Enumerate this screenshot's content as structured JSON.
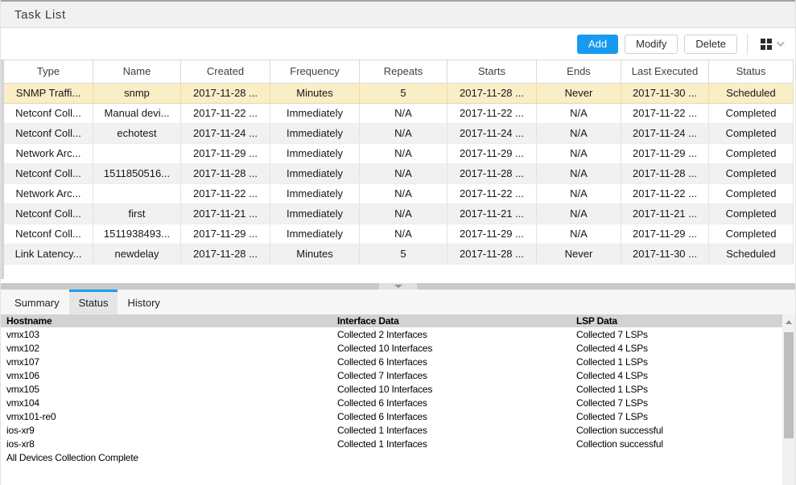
{
  "header": {
    "title": "Task List"
  },
  "toolbar": {
    "add_label": "Add",
    "modify_label": "Modify",
    "delete_label": "Delete"
  },
  "colors": {
    "accent_blue": "#169bf0",
    "selected_row_bg": "#faeec6",
    "alt_row_bg": "#f1f1f1",
    "status_header_bg": "#d2d2d2"
  },
  "table": {
    "columns": [
      "Type",
      "Name",
      "Created",
      "Frequency",
      "Repeats",
      "Starts",
      "Ends",
      "Last Executed",
      "Status"
    ],
    "rows": [
      {
        "active": true,
        "type": "SNMP Traffi...",
        "name": "snmp",
        "created": "2017-11-28 ...",
        "frequency": "Minutes",
        "repeats": "5",
        "starts": "2017-11-28 ...",
        "ends": "Never",
        "last_executed": "2017-11-30 ...",
        "status": "Scheduled"
      },
      {
        "type": "Netconf Coll...",
        "name": "Manual devi...",
        "created": "2017-11-22 ...",
        "frequency": "Immediately",
        "repeats": "N/A",
        "starts": "2017-11-22 ...",
        "ends": "N/A",
        "last_executed": "2017-11-22 ...",
        "status": "Completed"
      },
      {
        "type": "Netconf Coll...",
        "name": "echotest",
        "created": "2017-11-24 ...",
        "frequency": "Immediately",
        "repeats": "N/A",
        "starts": "2017-11-24 ...",
        "ends": "N/A",
        "last_executed": "2017-11-24 ...",
        "status": "Completed"
      },
      {
        "type": "Network Arc...",
        "name": "",
        "created": "2017-11-29 ...",
        "frequency": "Immediately",
        "repeats": "N/A",
        "starts": "2017-11-29 ...",
        "ends": "N/A",
        "last_executed": "2017-11-29 ...",
        "status": "Completed"
      },
      {
        "type": "Netconf Coll...",
        "name": "1511850516...",
        "created": "2017-11-28 ...",
        "frequency": "Immediately",
        "repeats": "N/A",
        "starts": "2017-11-28 ...",
        "ends": "N/A",
        "last_executed": "2017-11-28 ...",
        "status": "Completed"
      },
      {
        "type": "Network Arc...",
        "name": "",
        "created": "2017-11-22 ...",
        "frequency": "Immediately",
        "repeats": "N/A",
        "starts": "2017-11-22 ...",
        "ends": "N/A",
        "last_executed": "2017-11-22 ...",
        "status": "Completed"
      },
      {
        "type": "Netconf Coll...",
        "name": "first",
        "created": "2017-11-21 ...",
        "frequency": "Immediately",
        "repeats": "N/A",
        "starts": "2017-11-21 ...",
        "ends": "N/A",
        "last_executed": "2017-11-21 ...",
        "status": "Completed"
      },
      {
        "type": "Netconf Coll...",
        "name": "1511938493...",
        "created": "2017-11-29 ...",
        "frequency": "Immediately",
        "repeats": "N/A",
        "starts": "2017-11-29 ...",
        "ends": "N/A",
        "last_executed": "2017-11-29 ...",
        "status": "Completed"
      },
      {
        "type": "Link Latency...",
        "name": "newdelay",
        "created": "2017-11-28 ...",
        "frequency": "Minutes",
        "repeats": "5",
        "starts": "2017-11-28 ...",
        "ends": "Never",
        "last_executed": "2017-11-30 ...",
        "status": "Scheduled"
      }
    ]
  },
  "tabs": {
    "items": [
      {
        "label": "Summary"
      },
      {
        "label": "Status",
        "active": true
      },
      {
        "label": "History"
      }
    ]
  },
  "status_panel": {
    "columns": [
      "Hostname",
      "Interface Data",
      "LSP Data"
    ],
    "rows": [
      {
        "hostname": "vmx103",
        "interface_data": "Collected 2 Interfaces",
        "lsp_data": "Collected 7 LSPs"
      },
      {
        "hostname": "vmx102",
        "interface_data": "Collected 10 Interfaces",
        "lsp_data": "Collected 4 LSPs"
      },
      {
        "hostname": "vmx107",
        "interface_data": "Collected 6 Interfaces",
        "lsp_data": "Collected 1 LSPs"
      },
      {
        "hostname": "vmx106",
        "interface_data": "Collected 7 Interfaces",
        "lsp_data": "Collected 4 LSPs"
      },
      {
        "hostname": "vmx105",
        "interface_data": "Collected 10 Interfaces",
        "lsp_data": "Collected 1 LSPs"
      },
      {
        "hostname": "vmx104",
        "interface_data": "Collected 6 Interfaces",
        "lsp_data": "Collected 7 LSPs"
      },
      {
        "hostname": "vmx101-re0",
        "interface_data": "Collected 6 Interfaces",
        "lsp_data": "Collected 7 LSPs"
      },
      {
        "hostname": "ios-xr9",
        "interface_data": "Collected 1 Interfaces",
        "lsp_data": "Collection successful"
      },
      {
        "hostname": "ios-xr8",
        "interface_data": "Collected 1 Interfaces",
        "lsp_data": "Collection successful"
      },
      {
        "hostname": "All Devices Collection Complete",
        "interface_data": "",
        "lsp_data": ""
      }
    ]
  }
}
